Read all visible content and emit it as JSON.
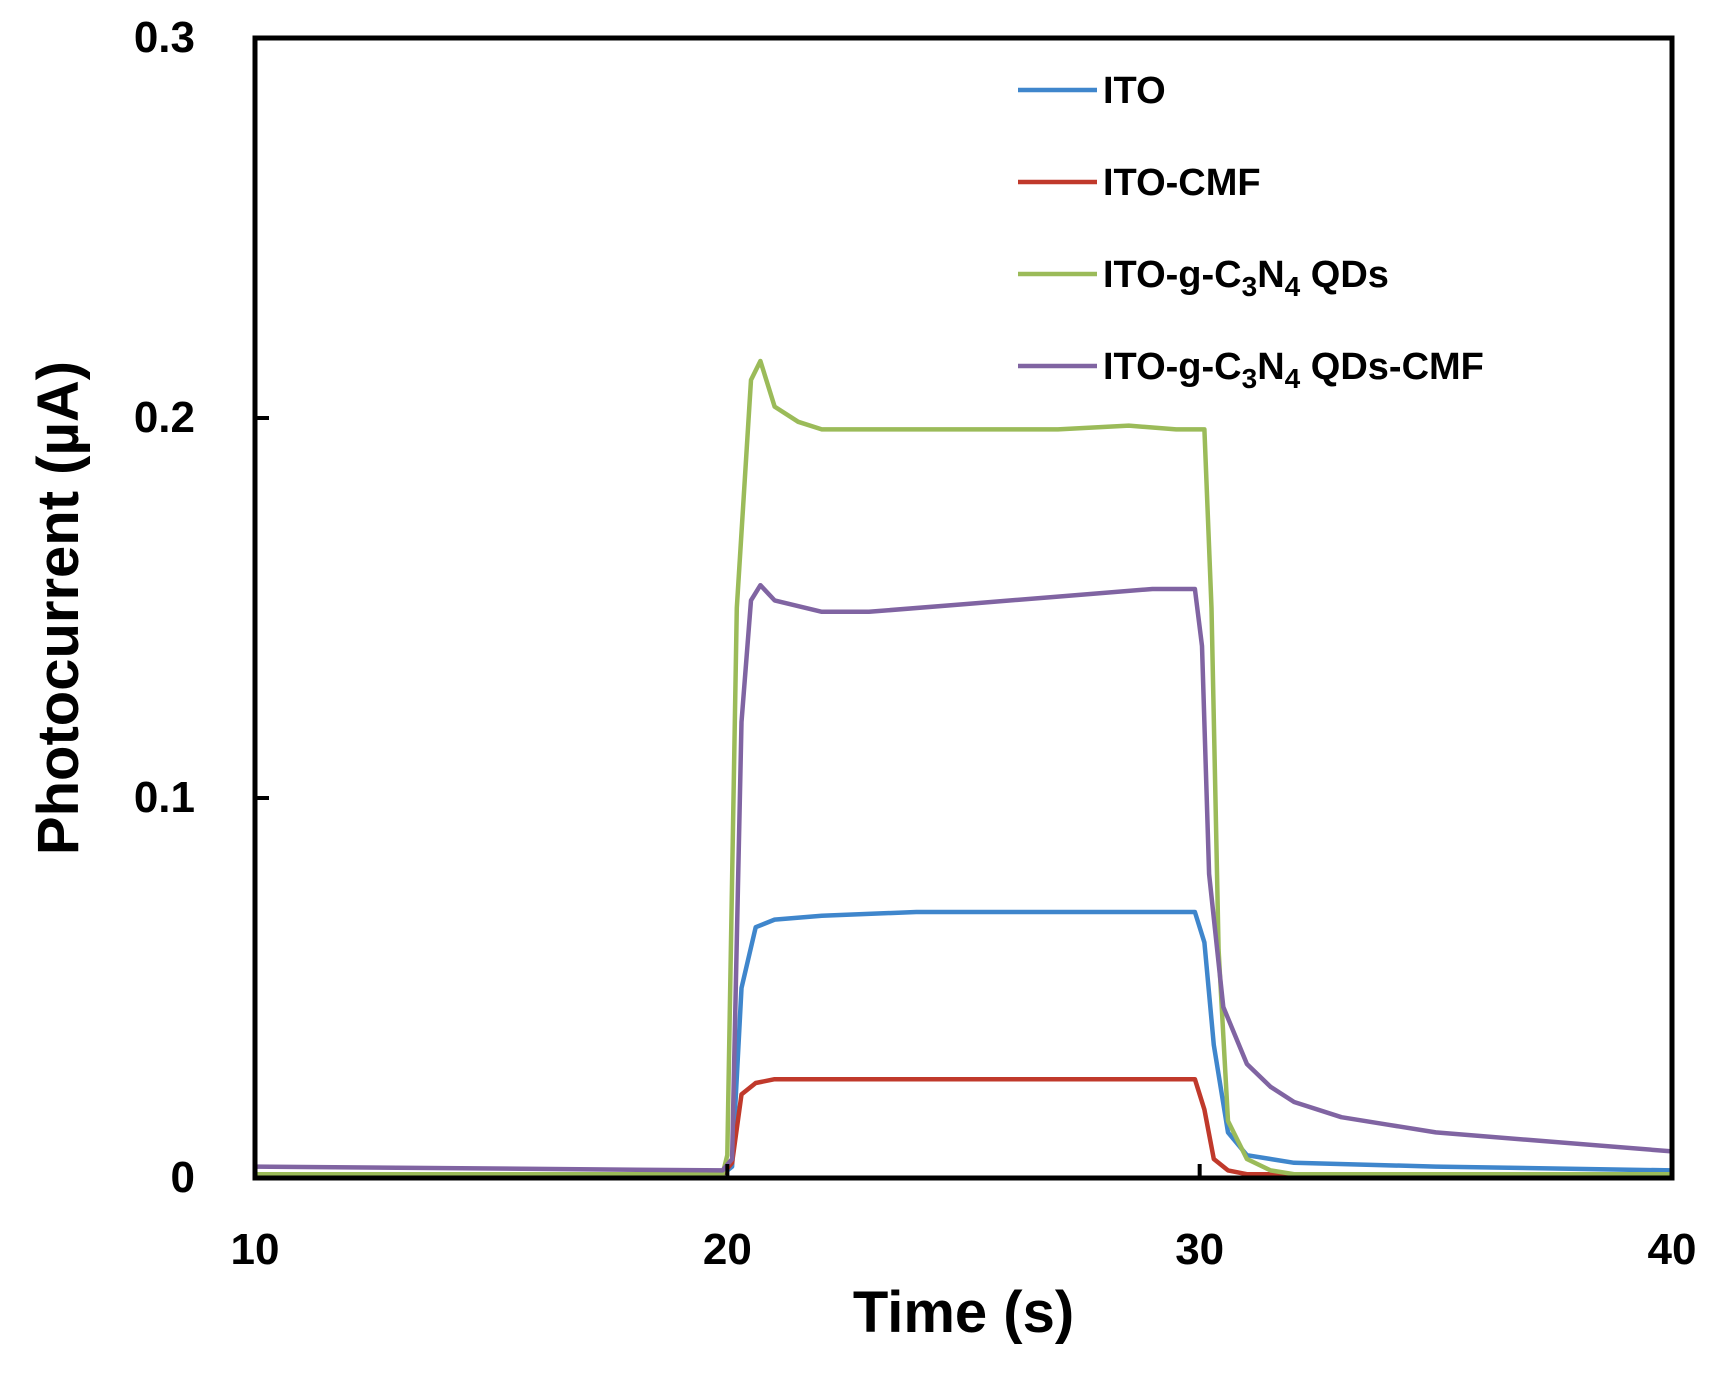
{
  "chart_data": {
    "type": "line",
    "title": "",
    "xlabel": "Time (s)",
    "ylabel": "Photocurrent (µA)",
    "xlim": [
      10,
      40
    ],
    "ylim": [
      0,
      0.3
    ],
    "xticks": [
      10,
      20,
      30,
      40
    ],
    "xtick_labels": [
      "10",
      "20",
      "30",
      "40"
    ],
    "yticks": [
      0,
      0.1,
      0.2,
      0.3
    ],
    "ytick_labels": [
      "0",
      "0.1",
      "0.2",
      "0.3"
    ],
    "grid": false,
    "legend_position": "top-right",
    "series": [
      {
        "name": "ITO",
        "label_parts": [
          [
            "ITO",
            ""
          ]
        ],
        "color": "#3f86cc",
        "x": [
          10,
          19.9,
          20.1,
          20.3,
          20.6,
          21,
          22,
          24,
          26,
          28,
          29.9,
          30.1,
          30.3,
          30.6,
          31,
          32,
          35,
          40
        ],
        "y": [
          0.001,
          0.001,
          0.003,
          0.05,
          0.066,
          0.068,
          0.069,
          0.07,
          0.07,
          0.07,
          0.07,
          0.062,
          0.035,
          0.012,
          0.006,
          0.004,
          0.003,
          0.002
        ]
      },
      {
        "name": "ITO-CMF",
        "label_parts": [
          [
            "ITO-CMF",
            ""
          ]
        ],
        "color": "#c0392b",
        "x": [
          10,
          19.9,
          20.1,
          20.3,
          20.6,
          21,
          22,
          24,
          26,
          28,
          29.9,
          30.1,
          30.3,
          30.6,
          31,
          33,
          35,
          40
        ],
        "y": [
          0.001,
          0.001,
          0.004,
          0.022,
          0.025,
          0.026,
          0.026,
          0.026,
          0.026,
          0.026,
          0.026,
          0.018,
          0.005,
          0.002,
          0.001,
          0.001,
          0.001,
          0.001
        ]
      },
      {
        "name": "ITO-g-C3N4 QDs",
        "label_parts": [
          [
            "ITO-g-C",
            ""
          ],
          [
            "3",
            "sub"
          ],
          [
            "N",
            ""
          ],
          [
            "4",
            "sub"
          ],
          [
            " QDs",
            ""
          ]
        ],
        "color": "#9bbb59",
        "x": [
          10,
          19.9,
          20.0,
          20.2,
          20.5,
          20.7,
          21.0,
          21.5,
          22,
          23,
          25,
          27,
          28.5,
          29.5,
          30.1,
          30.25,
          30.4,
          30.6,
          31,
          31.5,
          32,
          35,
          40
        ],
        "y": [
          0.001,
          0.001,
          0.006,
          0.15,
          0.21,
          0.215,
          0.203,
          0.199,
          0.197,
          0.197,
          0.197,
          0.197,
          0.198,
          0.197,
          0.197,
          0.15,
          0.06,
          0.015,
          0.005,
          0.002,
          0.001,
          0.001,
          0.001
        ]
      },
      {
        "name": "ITO-g-C3N4 QDs-CMF",
        "label_parts": [
          [
            "ITO-g-C",
            ""
          ],
          [
            "3",
            "sub"
          ],
          [
            "N",
            ""
          ],
          [
            "4",
            "sub"
          ],
          [
            " QDs-CMF",
            ""
          ]
        ],
        "color": "#8064a2",
        "x": [
          10,
          19.9,
          20.1,
          20.3,
          20.5,
          20.7,
          21,
          22,
          23,
          25,
          27,
          29,
          29.9,
          30.05,
          30.2,
          30.5,
          31,
          31.5,
          32,
          33,
          34,
          35,
          37,
          40
        ],
        "y": [
          0.003,
          0.002,
          0.005,
          0.12,
          0.152,
          0.156,
          0.152,
          0.149,
          0.149,
          0.151,
          0.153,
          0.155,
          0.155,
          0.14,
          0.08,
          0.045,
          0.03,
          0.024,
          0.02,
          0.016,
          0.014,
          0.012,
          0.01,
          0.007
        ]
      }
    ]
  }
}
